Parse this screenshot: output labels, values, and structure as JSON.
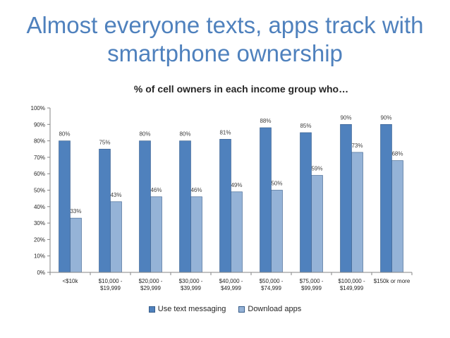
{
  "slide": {
    "title_line1": "Almost everyone texts, apps track with",
    "title_line2": "smartphone ownership"
  },
  "chart_data": {
    "type": "bar",
    "title": "% of cell owners in each income group who…",
    "categories": [
      [
        "<$10k"
      ],
      [
        "$10,000 -",
        "$19,999"
      ],
      [
        "$20,000 -",
        "$29,999"
      ],
      [
        "$30,000 -",
        "$39,999"
      ],
      [
        "$40,000 -",
        "$49,999"
      ],
      [
        "$50,000 -",
        "$74,999"
      ],
      [
        "$75,000 -",
        "$99,999"
      ],
      [
        "$100,000 -",
        "$149,999"
      ],
      [
        "$150k or more"
      ]
    ],
    "series": [
      {
        "name": "Use text messaging",
        "values": [
          80,
          75,
          80,
          80,
          81,
          88,
          85,
          90,
          90
        ],
        "color": "#4f81bd"
      },
      {
        "name": "Download apps",
        "values": [
          33,
          43,
          46,
          46,
          49,
          50,
          59,
          73,
          68
        ],
        "color": "#95b3d7"
      }
    ],
    "ylim": [
      0,
      100
    ],
    "yticks": [
      0,
      10,
      20,
      30,
      40,
      50,
      60,
      70,
      80,
      90,
      100
    ],
    "value_suffix": "%",
    "xlabel": "",
    "ylabel": "",
    "legend_position": "bottom"
  }
}
